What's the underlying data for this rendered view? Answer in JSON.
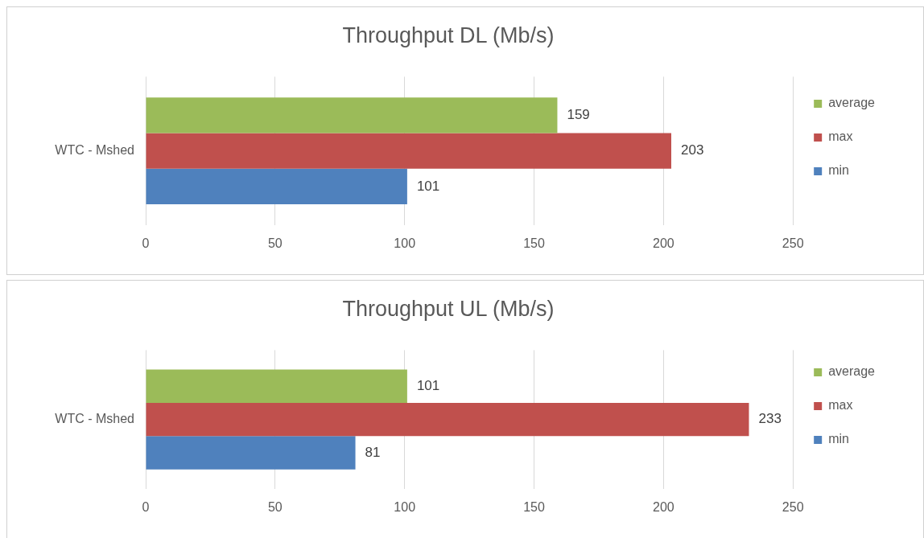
{
  "chart_data": [
    {
      "type": "bar",
      "orientation": "horizontal",
      "title": "Throughput DL (Mb/s)",
      "categories": [
        "WTC - Mshed"
      ],
      "series": [
        {
          "name": "average",
          "color": "#9bbb59",
          "values": [
            159
          ]
        },
        {
          "name": "max",
          "color": "#c0504d",
          "values": [
            203
          ]
        },
        {
          "name": "min",
          "color": "#4f81bd",
          "values": [
            101
          ]
        }
      ],
      "xlim": [
        0,
        250
      ],
      "xticks": [
        0,
        50,
        100,
        150,
        200,
        250
      ],
      "grid": "x",
      "legend": "right",
      "data_labels": true
    },
    {
      "type": "bar",
      "orientation": "horizontal",
      "title": "Throughput UL (Mb/s)",
      "categories": [
        "WTC - Mshed"
      ],
      "series": [
        {
          "name": "average",
          "color": "#9bbb59",
          "values": [
            101
          ]
        },
        {
          "name": "max",
          "color": "#c0504d",
          "values": [
            233
          ]
        },
        {
          "name": "min",
          "color": "#4f81bd",
          "values": [
            81
          ]
        }
      ],
      "xlim": [
        0,
        250
      ],
      "xticks": [
        0,
        50,
        100,
        150,
        200,
        250
      ],
      "grid": "x",
      "legend": "right",
      "data_labels": true
    }
  ]
}
